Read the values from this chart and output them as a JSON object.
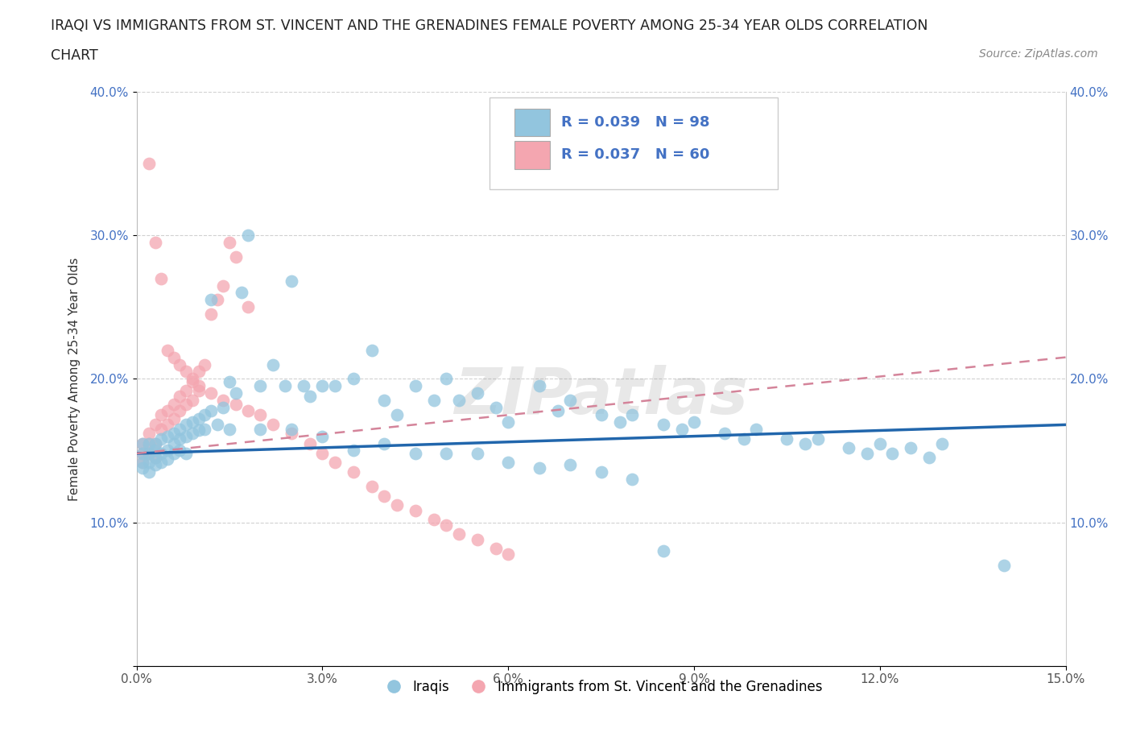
{
  "title_line1": "IRAQI VS IMMIGRANTS FROM ST. VINCENT AND THE GRENADINES FEMALE POVERTY AMONG 25-34 YEAR OLDS CORRELATION",
  "title_line2": "CHART",
  "source_text": "Source: ZipAtlas.com",
  "ylabel": "Female Poverty Among 25-34 Year Olds",
  "xlim": [
    0.0,
    0.15
  ],
  "ylim": [
    0.0,
    0.4
  ],
  "xticks": [
    0.0,
    0.03,
    0.06,
    0.09,
    0.12,
    0.15
  ],
  "yticks": [
    0.0,
    0.1,
    0.2,
    0.3,
    0.4
  ],
  "xtick_labels": [
    "0.0%",
    "3.0%",
    "6.0%",
    "9.0%",
    "12.0%",
    "15.0%"
  ],
  "ytick_labels": [
    "",
    "10.0%",
    "20.0%",
    "30.0%",
    "40.0%"
  ],
  "blue_color": "#92C5DE",
  "pink_color": "#F4A6B0",
  "blue_line_color": "#2166AC",
  "pink_line_color": "#D4849A",
  "legend_text_color": "#4472C4",
  "R_blue": 0.039,
  "N_blue": 98,
  "R_pink": 0.037,
  "N_pink": 60,
  "legend_label_blue": "Iraqis",
  "legend_label_pink": "Immigrants from St. Vincent and the Grenadines",
  "watermark": "ZIPatlas",
  "blue_x": [
    0.001,
    0.001,
    0.001,
    0.001,
    0.002,
    0.002,
    0.002,
    0.002,
    0.003,
    0.003,
    0.003,
    0.003,
    0.004,
    0.004,
    0.004,
    0.005,
    0.005,
    0.005,
    0.006,
    0.006,
    0.006,
    0.007,
    0.007,
    0.007,
    0.008,
    0.008,
    0.009,
    0.009,
    0.01,
    0.01,
    0.011,
    0.011,
    0.012,
    0.013,
    0.014,
    0.015,
    0.016,
    0.017,
    0.018,
    0.02,
    0.022,
    0.024,
    0.025,
    0.027,
    0.028,
    0.03,
    0.032,
    0.035,
    0.038,
    0.04,
    0.042,
    0.045,
    0.048,
    0.05,
    0.052,
    0.055,
    0.058,
    0.06,
    0.065,
    0.068,
    0.07,
    0.075,
    0.078,
    0.08,
    0.085,
    0.088,
    0.09,
    0.095,
    0.098,
    0.1,
    0.105,
    0.108,
    0.11,
    0.115,
    0.118,
    0.12,
    0.122,
    0.125,
    0.128,
    0.13,
    0.008,
    0.012,
    0.015,
    0.02,
    0.025,
    0.03,
    0.035,
    0.04,
    0.045,
    0.05,
    0.055,
    0.06,
    0.065,
    0.07,
    0.075,
    0.08,
    0.085,
    0.14
  ],
  "blue_y": [
    0.155,
    0.148,
    0.142,
    0.138,
    0.155,
    0.148,
    0.142,
    0.135,
    0.155,
    0.15,
    0.145,
    0.14,
    0.158,
    0.148,
    0.142,
    0.16,
    0.15,
    0.144,
    0.162,
    0.155,
    0.148,
    0.165,
    0.158,
    0.15,
    0.168,
    0.16,
    0.17,
    0.162,
    0.172,
    0.164,
    0.175,
    0.165,
    0.178,
    0.168,
    0.18,
    0.198,
    0.19,
    0.26,
    0.3,
    0.195,
    0.21,
    0.195,
    0.268,
    0.195,
    0.188,
    0.195,
    0.195,
    0.2,
    0.22,
    0.185,
    0.175,
    0.195,
    0.185,
    0.2,
    0.185,
    0.19,
    0.18,
    0.17,
    0.195,
    0.178,
    0.185,
    0.175,
    0.17,
    0.175,
    0.168,
    0.165,
    0.17,
    0.162,
    0.158,
    0.165,
    0.158,
    0.155,
    0.158,
    0.152,
    0.148,
    0.155,
    0.148,
    0.152,
    0.145,
    0.155,
    0.148,
    0.255,
    0.165,
    0.165,
    0.165,
    0.16,
    0.15,
    0.155,
    0.148,
    0.148,
    0.148,
    0.142,
    0.138,
    0.14,
    0.135,
    0.13,
    0.08,
    0.07
  ],
  "pink_x": [
    0.001,
    0.001,
    0.001,
    0.002,
    0.002,
    0.002,
    0.003,
    0.003,
    0.003,
    0.004,
    0.004,
    0.005,
    0.005,
    0.006,
    0.006,
    0.007,
    0.007,
    0.008,
    0.008,
    0.009,
    0.009,
    0.01,
    0.01,
    0.011,
    0.012,
    0.013,
    0.014,
    0.015,
    0.016,
    0.018,
    0.002,
    0.003,
    0.004,
    0.005,
    0.006,
    0.007,
    0.008,
    0.009,
    0.01,
    0.012,
    0.014,
    0.016,
    0.018,
    0.02,
    0.022,
    0.025,
    0.028,
    0.03,
    0.032,
    0.035,
    0.038,
    0.04,
    0.042,
    0.045,
    0.048,
    0.05,
    0.052,
    0.055,
    0.058,
    0.06
  ],
  "pink_y": [
    0.155,
    0.148,
    0.142,
    0.162,
    0.155,
    0.148,
    0.168,
    0.155,
    0.145,
    0.175,
    0.165,
    0.178,
    0.168,
    0.182,
    0.172,
    0.188,
    0.178,
    0.192,
    0.182,
    0.198,
    0.185,
    0.205,
    0.192,
    0.21,
    0.245,
    0.255,
    0.265,
    0.295,
    0.285,
    0.25,
    0.35,
    0.295,
    0.27,
    0.22,
    0.215,
    0.21,
    0.205,
    0.2,
    0.195,
    0.19,
    0.185,
    0.182,
    0.178,
    0.175,
    0.168,
    0.162,
    0.155,
    0.148,
    0.142,
    0.135,
    0.125,
    0.118,
    0.112,
    0.108,
    0.102,
    0.098,
    0.092,
    0.088,
    0.082,
    0.078
  ]
}
